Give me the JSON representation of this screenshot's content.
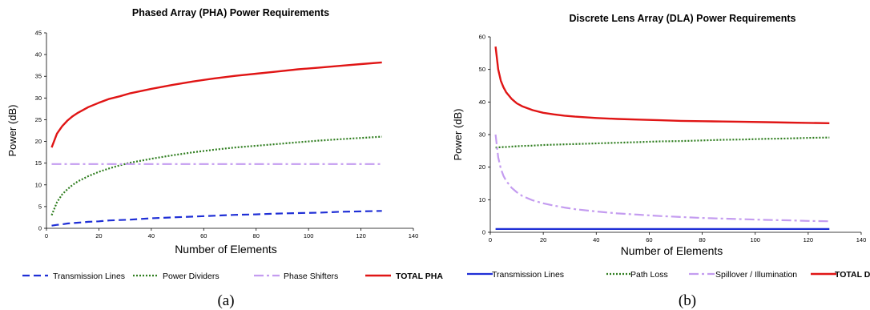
{
  "chart_data": [
    {
      "type": "line",
      "title": "Phased Array (PHA) Power Requirements",
      "xlabel": "Number of Elements",
      "ylabel": "Power (dB)",
      "xlim": [
        0,
        140
      ],
      "ylim": [
        0,
        45
      ],
      "xticks": [
        0,
        20,
        40,
        60,
        80,
        100,
        120,
        140
      ],
      "yticks": [
        0,
        5,
        10,
        15,
        20,
        25,
        30,
        35,
        40,
        45
      ],
      "grid": false,
      "legend": "bottom",
      "caption": "(a)",
      "x": [
        2,
        4,
        6,
        8,
        10,
        12,
        16,
        20,
        24,
        28,
        32,
        40,
        48,
        56,
        64,
        72,
        80,
        88,
        96,
        104,
        112,
        120,
        128
      ],
      "series": [
        {
          "name": "Transmission Lines",
          "color": "#1f2fd6",
          "dash": "9,5",
          "width": 2.2,
          "bold": false,
          "values": [
            0.6,
            0.8,
            0.9,
            1.1,
            1.2,
            1.3,
            1.5,
            1.6,
            1.8,
            1.9,
            2.0,
            2.3,
            2.5,
            2.7,
            2.9,
            3.1,
            3.2,
            3.4,
            3.5,
            3.6,
            3.8,
            3.9,
            4.0
          ]
        },
        {
          "name": "Power Dividers",
          "color": "#2e7d1e",
          "dash": "2,2",
          "width": 2.2,
          "bold": false,
          "values": [
            3.0,
            6.0,
            7.8,
            9.0,
            10.0,
            10.8,
            12.0,
            13.0,
            13.8,
            14.5,
            15.1,
            16.0,
            16.8,
            17.5,
            18.1,
            18.6,
            19.0,
            19.4,
            19.8,
            20.2,
            20.5,
            20.8,
            21.1
          ]
        },
        {
          "name": "Phase Shifters",
          "color": "#c49cf0",
          "dash": "12,4,3,4",
          "width": 2.2,
          "bold": false,
          "values": [
            14.8,
            14.8,
            14.8,
            14.8,
            14.8,
            14.8,
            14.8,
            14.8,
            14.8,
            14.8,
            14.8,
            14.8,
            14.8,
            14.8,
            14.8,
            14.8,
            14.8,
            14.8,
            14.8,
            14.8,
            14.8,
            14.8,
            14.8
          ]
        },
        {
          "name": "TOTAL PHA",
          "color": "#e01515",
          "dash": "",
          "width": 2.4,
          "bold": true,
          "values": [
            18.6,
            21.8,
            23.5,
            24.8,
            25.8,
            26.6,
            27.9,
            28.9,
            29.8,
            30.4,
            31.1,
            32.1,
            33.0,
            33.8,
            34.5,
            35.1,
            35.6,
            36.1,
            36.6,
            37.0,
            37.4,
            37.8,
            38.2
          ]
        }
      ]
    },
    {
      "type": "line",
      "title": "Discrete Lens Array (DLA) Power Requirements",
      "xlabel": "Number of Elements",
      "ylabel": "Power (dB)",
      "xlim": [
        0,
        140
      ],
      "ylim": [
        0,
        60
      ],
      "xticks": [
        0,
        20,
        40,
        60,
        80,
        100,
        120,
        140
      ],
      "yticks": [
        0,
        10,
        20,
        30,
        40,
        50,
        60
      ],
      "grid": false,
      "legend": "bottom",
      "caption": "(b)",
      "x": [
        2,
        3,
        4,
        5,
        6,
        8,
        10,
        12,
        16,
        20,
        24,
        28,
        32,
        40,
        48,
        56,
        64,
        72,
        80,
        88,
        96,
        104,
        112,
        120,
        128
      ],
      "series": [
        {
          "name": "Transmission Lines",
          "color": "#1f2fd6",
          "dash": "",
          "width": 2.2,
          "bold": false,
          "values": [
            1.0,
            1.0,
            1.0,
            1.0,
            1.0,
            1.0,
            1.0,
            1.0,
            1.0,
            1.0,
            1.0,
            1.0,
            1.0,
            1.0,
            1.0,
            1.0,
            1.0,
            1.0,
            1.0,
            1.0,
            1.0,
            1.0,
            1.0,
            1.0,
            1.0
          ]
        },
        {
          "name": "Path Loss",
          "color": "#2e7d1e",
          "dash": "2,2",
          "width": 2.2,
          "bold": false,
          "values": [
            26.0,
            26.1,
            26.1,
            26.2,
            26.2,
            26.3,
            26.4,
            26.5,
            26.6,
            26.8,
            26.9,
            27.0,
            27.1,
            27.3,
            27.5,
            27.7,
            27.9,
            28.0,
            28.2,
            28.4,
            28.5,
            28.7,
            28.8,
            29.0,
            29.1
          ]
        },
        {
          "name": "Spillover / Illumination",
          "color": "#c49cf0",
          "dash": "12,4,3,4",
          "width": 2.2,
          "bold": false,
          "values": [
            30.0,
            23.0,
            19.5,
            17.3,
            15.8,
            13.7,
            12.3,
            11.2,
            9.8,
            8.9,
            8.2,
            7.6,
            7.1,
            6.4,
            5.8,
            5.4,
            5.0,
            4.7,
            4.4,
            4.2,
            4.0,
            3.8,
            3.7,
            3.5,
            3.4
          ]
        },
        {
          "name": "TOTAL DLA",
          "color": "#e01515",
          "dash": "",
          "width": 2.4,
          "bold": true,
          "values": [
            57.0,
            50.0,
            46.5,
            44.5,
            43.0,
            41.0,
            39.6,
            38.7,
            37.5,
            36.7,
            36.2,
            35.8,
            35.5,
            35.1,
            34.8,
            34.6,
            34.4,
            34.2,
            34.1,
            34.0,
            33.9,
            33.8,
            33.7,
            33.6,
            33.5
          ]
        }
      ]
    }
  ]
}
